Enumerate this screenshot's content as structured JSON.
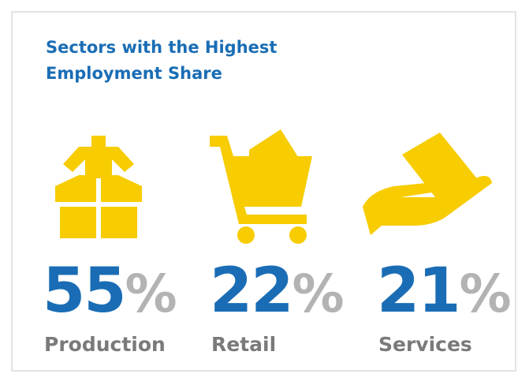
{
  "header": {
    "title": "Sectors with the Highest Employment Share"
  },
  "items": [
    {
      "value": 55,
      "unit": "%",
      "label": "Production"
    },
    {
      "value": 22,
      "unit": "%",
      "label": "Retail"
    },
    {
      "value": 21,
      "unit": "%",
      "label": "Services"
    }
  ]
}
